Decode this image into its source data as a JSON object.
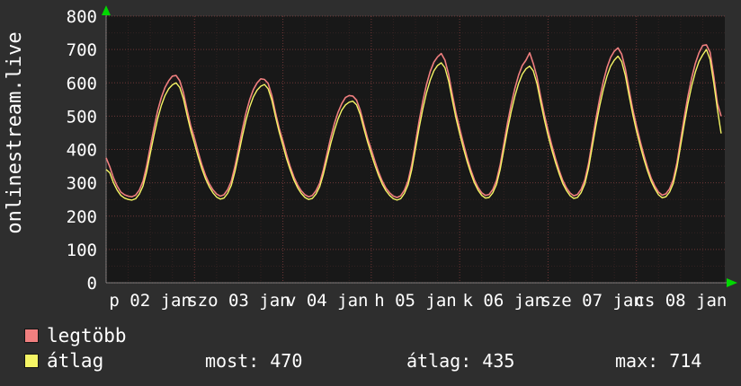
{
  "side_label": "onlinestream.live",
  "colors": {
    "background": "#2e2e2e",
    "plot_background": "#181818",
    "grid_major": "rgba(226,95,95,0.42)",
    "grid_minor": "rgba(210,90,90,0.14)",
    "axis": "rgba(160,160,160,0.7)",
    "arrow": "#00d800",
    "text": "#ffffff"
  },
  "chart_data": {
    "type": "line",
    "title": "onlinestream.live",
    "ylim": [
      0,
      800
    ],
    "hours_span": 168,
    "y_ticks": [
      0,
      100,
      200,
      300,
      400,
      500,
      600,
      700,
      800
    ],
    "x_ticks": [
      {
        "h": 0,
        "label": "p 02 jan"
      },
      {
        "h": 24,
        "label": "szo 03 jan"
      },
      {
        "h": 48,
        "label": "v 04 jan"
      },
      {
        "h": 72,
        "label": "h 05 jan"
      },
      {
        "h": 96,
        "label": "k 06 jan"
      },
      {
        "h": 120,
        "label": "sze 07 jan"
      },
      {
        "h": 144,
        "label": "cs 08 jan"
      }
    ],
    "grid": {
      "minor_hours": 6,
      "major_hours": 24,
      "minor_y": 50,
      "major_y": 100
    },
    "legend": [
      {
        "label": "legtöbb",
        "color": "#f07f7f"
      },
      {
        "label": "átlag",
        "color": "#f5f565"
      }
    ],
    "stats": [
      {
        "label": "most:",
        "value": "470"
      },
      {
        "label": "átlag:",
        "value": "435"
      },
      {
        "label": "max:",
        "value": "714"
      }
    ],
    "series": [
      {
        "name": "legtöbb",
        "color": "#f07f7f",
        "values": [
          375,
          348,
          315,
          290,
          272,
          264,
          260,
          258,
          263,
          278,
          304,
          350,
          408,
          464,
          516,
          556,
          586,
          606,
          620,
          622,
          606,
          570,
          518,
          470,
          434,
          392,
          354,
          322,
          297,
          279,
          266,
          260,
          264,
          279,
          305,
          350,
          404,
          460,
          510,
          550,
          580,
          600,
          612,
          610,
          598,
          562,
          510,
          463,
          426,
          384,
          348,
          317,
          293,
          276,
          264,
          258,
          262,
          276,
          299,
          339,
          388,
          436,
          478,
          512,
          538,
          556,
          562,
          560,
          548,
          518,
          474,
          433,
          400,
          364,
          332,
          305,
          284,
          270,
          260,
          256,
          261,
          278,
          306,
          355,
          420,
          486,
          545,
          595,
          634,
          662,
          678,
          688,
          668,
          625,
          565,
          510,
          464,
          419,
          377,
          340,
          309,
          286,
          270,
          262,
          265,
          280,
          307,
          354,
          417,
          480,
          536,
          584,
          623,
          652,
          668,
          690,
          658,
          618,
          559,
          505,
          458,
          414,
          374,
          338,
          307,
          285,
          269,
          261,
          265,
          281,
          309,
          358,
          425,
          492,
          552,
          604,
          646,
          676,
          695,
          705,
          686,
          642,
          580,
          521,
          472,
          426,
          384,
          346,
          314,
          290,
          272,
          263,
          267,
          282,
          310,
          360,
          429,
          498,
          560,
          614,
          658,
          690,
          712,
          714,
          692,
          620,
          538,
          500
        ]
      },
      {
        "name": "átlag",
        "color": "#f5f565",
        "values": [
          340,
          330,
          300,
          278,
          262,
          254,
          250,
          248,
          252,
          266,
          290,
          332,
          388,
          442,
          492,
          532,
          562,
          582,
          594,
          600,
          586,
          552,
          502,
          456,
          418,
          378,
          342,
          312,
          288,
          270,
          257,
          251,
          254,
          268,
          292,
          334,
          386,
          440,
          488,
          528,
          558,
          578,
          590,
          595,
          582,
          548,
          498,
          452,
          412,
          372,
          338,
          308,
          285,
          268,
          256,
          250,
          253,
          266,
          288,
          326,
          372,
          418,
          458,
          492,
          518,
          534,
          542,
          545,
          534,
          505,
          462,
          422,
          386,
          352,
          322,
          296,
          276,
          262,
          252,
          248,
          252,
          268,
          294,
          340,
          402,
          465,
          522,
          570,
          608,
          636,
          652,
          660,
          645,
          605,
          548,
          495,
          448,
          405,
          365,
          330,
          300,
          278,
          262,
          254,
          256,
          270,
          295,
          340,
          400,
          460,
          514,
          560,
          598,
          626,
          642,
          650,
          636,
          598,
          542,
          490,
          442,
          400,
          362,
          328,
          298,
          277,
          261,
          253,
          256,
          271,
          297,
          344,
          408,
          472,
          530,
          580,
          620,
          650,
          668,
          680,
          664,
          622,
          562,
          506,
          456,
          412,
          372,
          336,
          305,
          282,
          264,
          255,
          258,
          272,
          298,
          346,
          412,
          478,
          538,
          590,
          632,
          664,
          684,
          700,
          670,
          600,
          520,
          448
        ]
      }
    ]
  }
}
